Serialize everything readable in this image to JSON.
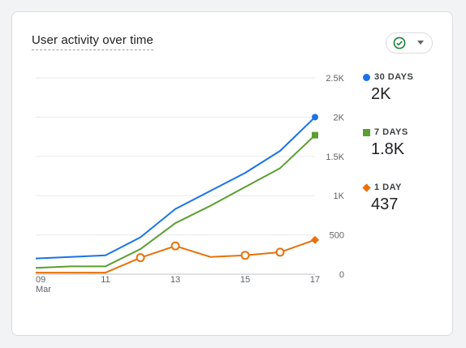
{
  "card": {
    "title": "User activity over time"
  },
  "control": {
    "icon": "check-circle-icon",
    "caret": "chevron-down-icon"
  },
  "legend": [
    {
      "label": "30 DAYS",
      "value": "2K",
      "color": "#1a73e8",
      "marker": "circle"
    },
    {
      "label": "7 DAYS",
      "value": "1.8K",
      "color": "#5c9e31",
      "marker": "square"
    },
    {
      "label": "1 DAY",
      "value": "437",
      "color": "#e8710a",
      "marker": "diamond"
    }
  ],
  "chart_data": {
    "type": "line",
    "title": "User activity over time",
    "x_tick_labels": [
      {
        "x": 9,
        "label": "09",
        "sublabel": "Mar"
      },
      {
        "x": 11,
        "label": "11"
      },
      {
        "x": 13,
        "label": "13"
      },
      {
        "x": 15,
        "label": "15"
      },
      {
        "x": 17,
        "label": "17"
      }
    ],
    "y_tick_labels": [
      "0",
      "500",
      "1K",
      "1.5K",
      "2K",
      "2.5K"
    ],
    "y_ticks": [
      0,
      500,
      1000,
      1500,
      2000,
      2500
    ],
    "xlim": [
      9,
      17
    ],
    "ylim": [
      0,
      2500
    ],
    "y_axis_side": "right",
    "grid": true,
    "series": [
      {
        "name": "30 DAYS",
        "color": "#1a73e8",
        "x": [
          9,
          10,
          11,
          12,
          13,
          14,
          15,
          16,
          17
        ],
        "values": [
          200,
          220,
          240,
          470,
          830,
          1060,
          1290,
          1570,
          2000
        ],
        "end_marker": "circle"
      },
      {
        "name": "7 DAYS",
        "color": "#5c9e31",
        "x": [
          9,
          10,
          11,
          12,
          13,
          14,
          15,
          16,
          17
        ],
        "values": [
          80,
          100,
          100,
          320,
          650,
          870,
          1110,
          1350,
          1770
        ],
        "end_marker": "square"
      },
      {
        "name": "1 DAY",
        "color": "#e8710a",
        "x": [
          9,
          10,
          11,
          12,
          13,
          14,
          15,
          16,
          17
        ],
        "values": [
          20,
          20,
          20,
          210,
          360,
          220,
          240,
          280,
          437
        ],
        "end_marker": "diamond",
        "hollow_markers_at": [
          12,
          13,
          15,
          16
        ]
      }
    ]
  }
}
